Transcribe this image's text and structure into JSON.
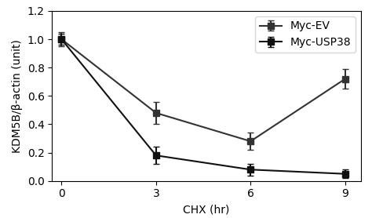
{
  "chart_data": {
    "type": "line",
    "x_label": "CHX (hr)",
    "y_label": "KDM5B/β-actin (unit)",
    "x": [
      0,
      3,
      6,
      9
    ],
    "series": [
      {
        "name": "Myc-EV",
        "color": "#333333",
        "marker": "square",
        "line_style": "solid",
        "values": [
          1.0,
          0.48,
          0.28,
          0.72
        ],
        "errors": [
          0.05,
          0.08,
          0.06,
          0.07
        ]
      },
      {
        "name": "Myc-USP38",
        "color": "#111111",
        "marker": "square",
        "line_style": "solid",
        "values": [
          1.0,
          0.18,
          0.08,
          0.05
        ],
        "errors": [
          0.04,
          0.06,
          0.04,
          0.03
        ]
      }
    ],
    "xlim": [
      -0.3,
      9.5
    ],
    "xticks": [
      0,
      3,
      6,
      9
    ],
    "ylim": [
      0,
      1.2
    ],
    "yticks": [
      {
        "value": 0.0,
        "label": "0.0"
      },
      {
        "value": 0.2,
        "label": "0.2"
      },
      {
        "value": 0.4,
        "label": "0.4"
      },
      {
        "value": 0.6,
        "label": "0.6"
      },
      {
        "value": 0.8,
        "label": "0.8"
      },
      {
        "value": 1.0,
        "label": "1.0"
      },
      {
        "value": 1.2,
        "label": "1.2"
      }
    ],
    "legend": "upper right",
    "grid": false
  }
}
